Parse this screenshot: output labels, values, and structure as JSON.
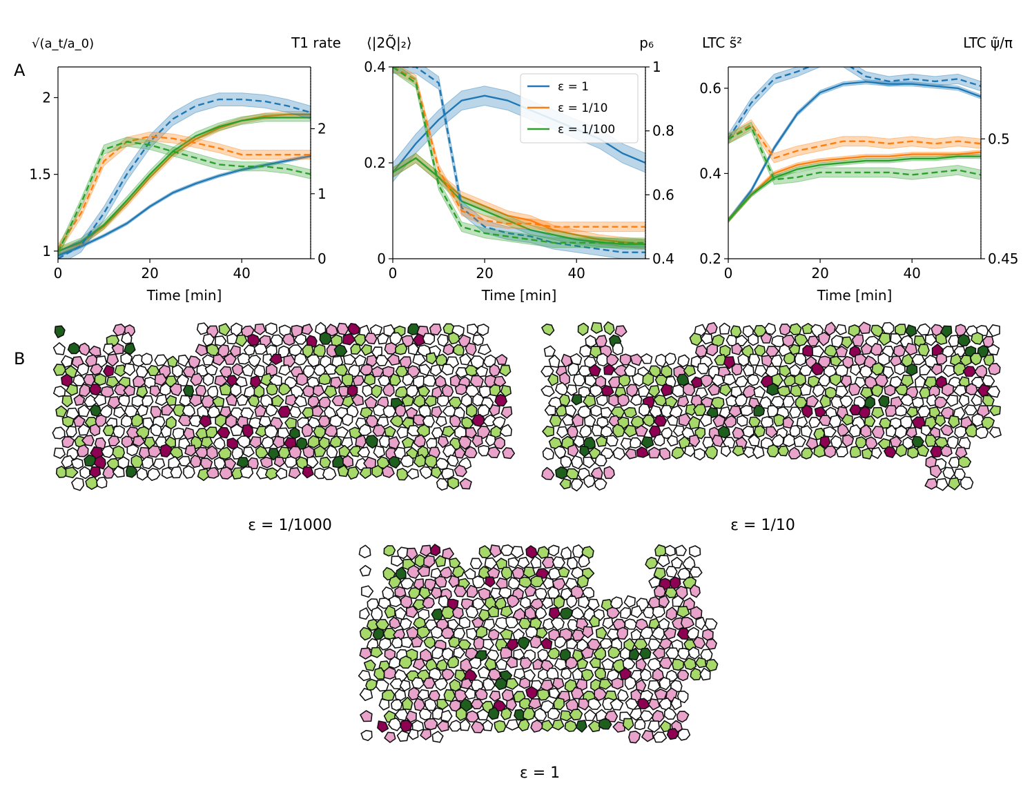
{
  "panel_labels": {
    "a": "A",
    "b": "B"
  },
  "colors": {
    "blue": "#1f77b4",
    "orange": "#ff7f0e",
    "green": "#2ca02c",
    "pink_light": "#e9a3cb",
    "pink_dark": "#8e0152",
    "green_light": "#a6d96a",
    "green_dark": "#1e5f1e"
  },
  "chart_data": [
    {
      "type": "line",
      "title": "",
      "left_label": "√(a_t/a_0)",
      "right_label": "T1 rate",
      "xlabel": "Time [min]",
      "xlim": [
        0,
        55
      ],
      "ylim": [
        0.95,
        2.2
      ],
      "y2lim": [
        0,
        2.95
      ],
      "xticks": [
        "0",
        "20",
        "40"
      ],
      "xtick_values": [
        0,
        20,
        40
      ],
      "yticks": [
        "1",
        "1.5",
        "2"
      ],
      "ytick_values": [
        1,
        1.5,
        2
      ],
      "y2ticks": [
        "0",
        "1",
        "2"
      ],
      "y2tick_values": [
        0,
        1,
        2
      ],
      "x": [
        0,
        5,
        10,
        15,
        20,
        25,
        30,
        35,
        40,
        45,
        50,
        55
      ],
      "series": [
        {
          "color": "blue",
          "axis": "left",
          "style": "solid",
          "band": 0.01,
          "values": [
            0.97,
            1.03,
            1.1,
            1.18,
            1.29,
            1.38,
            1.44,
            1.49,
            1.53,
            1.56,
            1.59,
            1.62
          ]
        },
        {
          "color": "orange",
          "axis": "left",
          "style": "solid",
          "band": 0.02,
          "values": [
            1.0,
            1.05,
            1.16,
            1.31,
            1.48,
            1.63,
            1.73,
            1.8,
            1.85,
            1.88,
            1.89,
            1.89
          ]
        },
        {
          "color": "green",
          "axis": "left",
          "style": "solid",
          "band": 0.025,
          "values": [
            1.0,
            1.06,
            1.17,
            1.33,
            1.5,
            1.65,
            1.75,
            1.81,
            1.85,
            1.87,
            1.87,
            1.87
          ]
        },
        {
          "color": "blue",
          "axis": "right",
          "style": "dashed",
          "band": 0.1,
          "values": [
            0.0,
            0.2,
            0.7,
            1.3,
            1.8,
            2.15,
            2.35,
            2.45,
            2.45,
            2.42,
            2.35,
            2.25
          ]
        },
        {
          "color": "orange",
          "axis": "right",
          "style": "dashed",
          "band": 0.07,
          "values": [
            0.15,
            0.7,
            1.5,
            1.8,
            1.88,
            1.85,
            1.78,
            1.7,
            1.6,
            1.6,
            1.6,
            1.6
          ]
        },
        {
          "color": "green",
          "axis": "right",
          "style": "dashed",
          "band": 0.07,
          "values": [
            0.1,
            0.85,
            1.68,
            1.8,
            1.75,
            1.65,
            1.55,
            1.45,
            1.42,
            1.42,
            1.38,
            1.3
          ]
        }
      ]
    },
    {
      "type": "line",
      "title": "",
      "left_label": "⟨|2Q̃|₂⟩",
      "right_label": "p₆",
      "xlabel": "Time [min]",
      "xlim": [
        0,
        55
      ],
      "ylim": [
        0,
        0.4
      ],
      "y2lim": [
        0.4,
        1.0
      ],
      "xticks": [
        "0",
        "20",
        "40"
      ],
      "xtick_values": [
        0,
        20,
        40
      ],
      "yticks": [
        "0",
        "0.2",
        "0.4"
      ],
      "ytick_values": [
        0,
        0.2,
        0.4
      ],
      "y2ticks": [
        "0.4",
        "0.6",
        "0.8",
        "1"
      ],
      "y2tick_values": [
        0.4,
        0.6,
        0.8,
        1.0
      ],
      "legend": {
        "placement": "upper-right",
        "entries": [
          "ε = 1",
          "ε = 1/10",
          "ε = 1/100"
        ],
        "colors": [
          "blue",
          "orange",
          "green"
        ]
      },
      "x": [
        0,
        5,
        10,
        15,
        20,
        25,
        30,
        35,
        40,
        45,
        50,
        55
      ],
      "series": [
        {
          "color": "blue",
          "axis": "left",
          "style": "solid",
          "band": 0.02,
          "values": [
            0.18,
            0.24,
            0.29,
            0.33,
            0.34,
            0.33,
            0.31,
            0.29,
            0.27,
            0.25,
            0.22,
            0.2
          ]
        },
        {
          "color": "orange",
          "axis": "left",
          "style": "solid",
          "band": 0.01,
          "values": [
            0.18,
            0.21,
            0.17,
            0.13,
            0.11,
            0.09,
            0.08,
            0.06,
            0.05,
            0.04,
            0.035,
            0.03
          ]
        },
        {
          "color": "green",
          "axis": "left",
          "style": "solid",
          "band": 0.01,
          "values": [
            0.18,
            0.21,
            0.17,
            0.12,
            0.1,
            0.08,
            0.06,
            0.05,
            0.04,
            0.035,
            0.03,
            0.03
          ]
        },
        {
          "color": "blue",
          "axis": "right",
          "style": "dashed",
          "band": 0.02,
          "values": [
            1.0,
            1.0,
            0.95,
            0.56,
            0.5,
            0.48,
            0.47,
            0.45,
            0.44,
            0.43,
            0.42,
            0.42
          ]
        },
        {
          "color": "orange",
          "axis": "right",
          "style": "dashed",
          "band": 0.015,
          "values": [
            1.0,
            0.96,
            0.68,
            0.55,
            0.52,
            0.51,
            0.51,
            0.5,
            0.5,
            0.5,
            0.5,
            0.5
          ]
        },
        {
          "color": "green",
          "axis": "right",
          "style": "dashed",
          "band": 0.015,
          "values": [
            1.0,
            0.95,
            0.63,
            0.5,
            0.48,
            0.47,
            0.46,
            0.45,
            0.45,
            0.45,
            0.45,
            0.45
          ]
        }
      ]
    },
    {
      "type": "line",
      "title": "",
      "left_label": "LTC s̃²",
      "right_label": "LTC ψ̃/π",
      "xlabel": "Time [min]",
      "xlim": [
        0,
        55
      ],
      "ylim": [
        0.2,
        0.65
      ],
      "y2lim": [
        0.45,
        0.53
      ],
      "xticks": [
        "0",
        "20",
        "40"
      ],
      "xtick_values": [
        0,
        20,
        40
      ],
      "yticks": [
        "0.2",
        "0.4",
        "0.6"
      ],
      "ytick_values": [
        0.2,
        0.4,
        0.6
      ],
      "y2ticks": [
        "0.45",
        "0.5"
      ],
      "y2tick_values": [
        0.45,
        0.5
      ],
      "x": [
        0,
        5,
        10,
        15,
        20,
        25,
        30,
        35,
        40,
        45,
        50,
        55
      ],
      "series": [
        {
          "color": "blue",
          "axis": "left",
          "style": "solid",
          "band": 0.005,
          "values": [
            0.29,
            0.36,
            0.46,
            0.54,
            0.59,
            0.61,
            0.615,
            0.61,
            0.61,
            0.605,
            0.6,
            0.58
          ]
        },
        {
          "color": "orange",
          "axis": "left",
          "style": "solid",
          "band": 0.005,
          "values": [
            0.29,
            0.35,
            0.4,
            0.42,
            0.43,
            0.435,
            0.44,
            0.44,
            0.445,
            0.445,
            0.445,
            0.45
          ]
        },
        {
          "color": "green",
          "axis": "left",
          "style": "solid",
          "band": 0.005,
          "values": [
            0.29,
            0.35,
            0.39,
            0.41,
            0.42,
            0.425,
            0.43,
            0.43,
            0.435,
            0.435,
            0.44,
            0.44
          ]
        },
        {
          "color": "blue",
          "axis": "right",
          "style": "dashed",
          "band": 0.002,
          "values": [
            0.5,
            0.515,
            0.525,
            0.528,
            0.532,
            0.532,
            0.526,
            0.524,
            0.525,
            0.524,
            0.525,
            0.522
          ]
        },
        {
          "color": "orange",
          "axis": "right",
          "style": "dashed",
          "band": 0.002,
          "values": [
            0.5,
            0.506,
            0.492,
            0.495,
            0.497,
            0.499,
            0.499,
            0.498,
            0.499,
            0.498,
            0.499,
            0.498
          ]
        },
        {
          "color": "green",
          "axis": "right",
          "style": "dashed",
          "band": 0.002,
          "values": [
            0.5,
            0.505,
            0.483,
            0.484,
            0.486,
            0.486,
            0.486,
            0.486,
            0.485,
            0.486,
            0.487,
            0.485
          ]
        }
      ]
    }
  ],
  "tissues": [
    {
      "caption": "ε = 1/1000"
    },
    {
      "caption": "ε = 1/10"
    },
    {
      "caption": "ε = 1"
    }
  ]
}
